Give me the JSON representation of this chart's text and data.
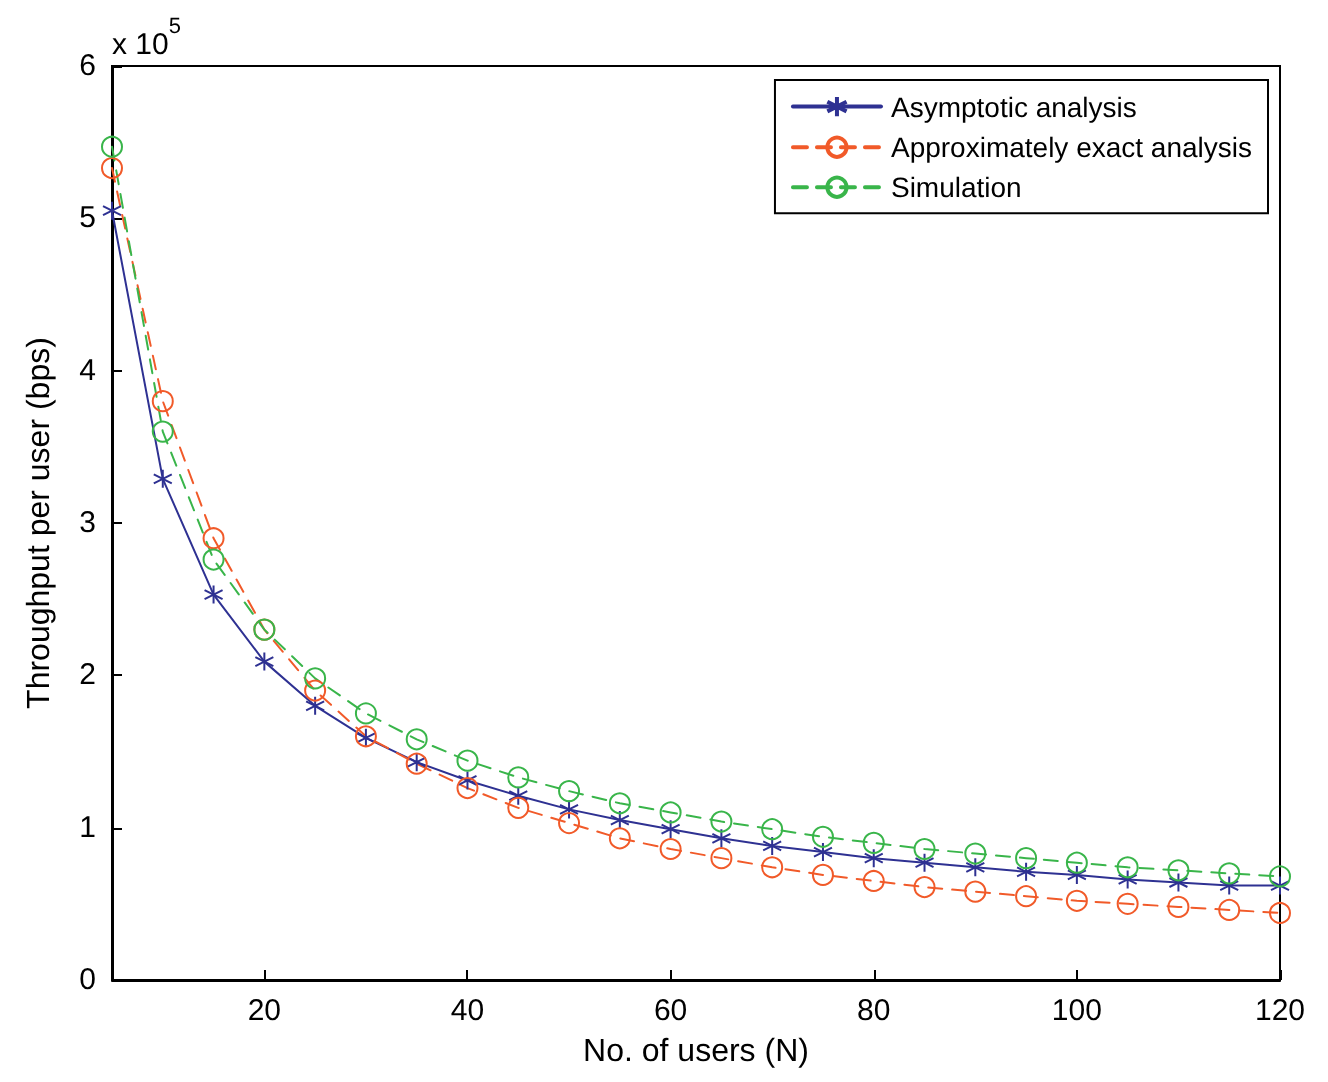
{
  "chart_data": {
    "type": "line",
    "xlabel": "No. of users (N)",
    "ylabel": "Throughput per user (bps)",
    "annotations": [
      "x 10$^{5}$"
    ],
    "x": [
      5,
      10,
      15,
      20,
      25,
      30,
      35,
      40,
      45,
      50,
      55,
      60,
      65,
      70,
      75,
      80,
      85,
      90,
      95,
      100,
      105,
      110,
      115,
      120
    ],
    "series": [
      {
        "name": "Asymptotic analysis",
        "color": "#2e3192",
        "marker": "cross",
        "line_style": "solid",
        "values": [
          5.05,
          3.29,
          2.53,
          2.09,
          1.8,
          1.59,
          1.43,
          1.31,
          1.21,
          1.12,
          1.05,
          0.99,
          0.93,
          0.88,
          0.84,
          0.8,
          0.77,
          0.74,
          0.71,
          0.69,
          0.66,
          0.64,
          0.62,
          0.62
        ]
      },
      {
        "name": "Approximately exact analysis",
        "color": "#f15a29",
        "marker": "circle",
        "line_style": "dashed",
        "values": [
          5.33,
          3.8,
          2.9,
          2.3,
          1.9,
          1.6,
          1.42,
          1.26,
          1.13,
          1.03,
          0.93,
          0.86,
          0.8,
          0.74,
          0.69,
          0.65,
          0.61,
          0.58,
          0.55,
          0.52,
          0.5,
          0.48,
          0.46,
          0.44
        ]
      },
      {
        "name": "Simulation",
        "color": "#39b54a",
        "marker": "circle",
        "line_style": "dashed",
        "values": [
          5.47,
          3.6,
          2.76,
          2.3,
          1.98,
          1.75,
          1.58,
          1.44,
          1.33,
          1.24,
          1.16,
          1.1,
          1.04,
          0.99,
          0.94,
          0.9,
          0.86,
          0.83,
          0.8,
          0.77,
          0.74,
          0.72,
          0.7,
          0.68
        ]
      }
    ],
    "xlim": [
      5,
      120
    ],
    "xticks": [
      20,
      40,
      60,
      80,
      100,
      120
    ],
    "ylim": [
      0,
      6
    ],
    "yticks": [
      0,
      1,
      2,
      3,
      4,
      5,
      6
    ],
    "grid": false,
    "legend": "top right"
  }
}
